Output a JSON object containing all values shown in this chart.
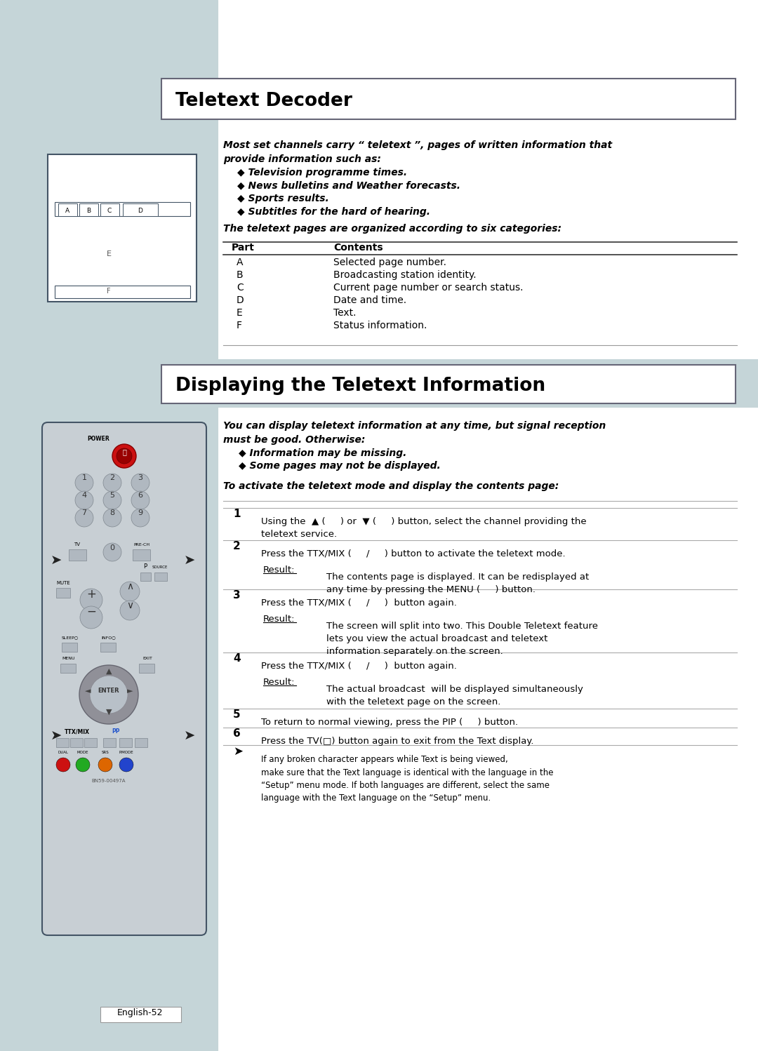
{
  "bg_color": "#ffffff",
  "sidebar_color": "#c5d5d8",
  "title1": "Teletext Decoder",
  "title2": "Displaying the Teletext Information",
  "section1_text_intro": "Most set channels carry “ teletext ”, pages of written information that\nprovide information such as:",
  "section1_bullets": [
    "Television programme times.",
    "News bulletins and Weather forecasts.",
    "Sports results.",
    "Subtitles for the hard of hearing."
  ],
  "table_header": [
    "Part",
    "Contents"
  ],
  "table_rows": [
    [
      "A",
      "Selected page number."
    ],
    [
      "B",
      "Broadcasting station identity."
    ],
    [
      "C",
      "Current page number or search status."
    ],
    [
      "D",
      "Date and time."
    ],
    [
      "E",
      "Text."
    ],
    [
      "F",
      "Status information."
    ]
  ],
  "table_intro": "The teletext pages are organized according to six categories:",
  "section2_intro": "You can display teletext information at any time, but signal reception\nmust be good. Otherwise:",
  "section2_bullets": [
    "Information may be missing.",
    "Some pages may not be displayed."
  ],
  "section2_sub": "To activate the teletext mode and display the contents page:",
  "note_text": "If any broken character appears while Text is being viewed,\nmake sure that the Text language is identical with the language in the\n“Setup” menu mode. If both languages are different, select the same\nlanguage with the Text language on the “Setup” menu.",
  "footer": "English-52"
}
